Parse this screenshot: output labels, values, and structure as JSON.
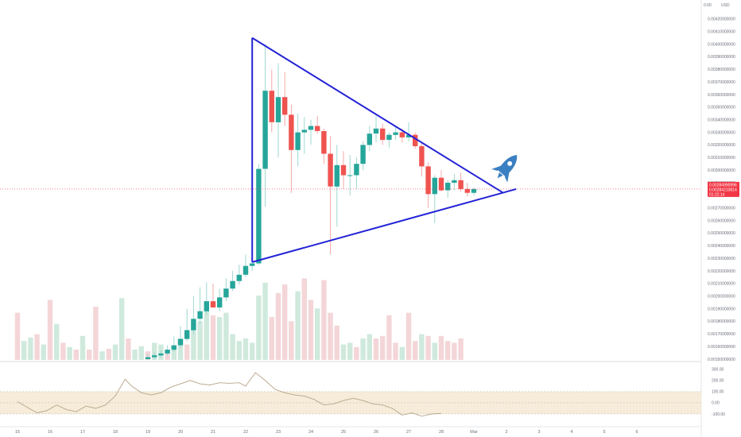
{
  "chart_data": {
    "type": "candlestick",
    "price_axis": {
      "currency": "USD",
      "top_label": "0.00",
      "ticks": [
        "0.00420000000",
        "0.00410000000",
        "0.00400000000",
        "0.00390000000",
        "0.00380000000",
        "0.00370000000",
        "0.00360000000",
        "0.00350000000",
        "0.00340000000",
        "0.00330000000",
        "0.00320000000",
        "0.00310000000",
        "0.00300000000",
        "0.00290000000",
        "0.00280000000",
        "0.00270000000",
        "0.00260000000",
        "0.00250000000",
        "0.00240000000",
        "0.00230000000",
        "0.00220000000",
        "0.00210000000",
        "0.00200000000",
        "0.00190000000",
        "0.00180000000",
        "0.00170000000",
        "0.00160000000",
        "0.00150000000"
      ],
      "ylim": [
        0.0015,
        0.0043
      ]
    },
    "last_price": {
      "value": "0.00284990996",
      "sub_value": "0.00284210814",
      "countdown": "01:22:14",
      "price": 0.00285,
      "color": "#f23645"
    },
    "date_labels": [
      {
        "label": "15",
        "day": 15
      },
      {
        "label": "16",
        "day": 16
      },
      {
        "label": "17",
        "day": 17
      },
      {
        "label": "18",
        "day": 18
      },
      {
        "label": "19",
        "day": 19
      },
      {
        "label": "20",
        "day": 20
      },
      {
        "label": "21",
        "day": 21
      },
      {
        "label": "22",
        "day": 22
      },
      {
        "label": "23",
        "day": 23
      },
      {
        "label": "24",
        "day": 24
      },
      {
        "label": "25",
        "day": 25
      },
      {
        "label": "26",
        "day": 26
      },
      {
        "label": "27",
        "day": 27
      },
      {
        "label": "28",
        "day": 28
      },
      {
        "label": "Mar",
        "day": 29
      },
      {
        "label": "2",
        "day": 30
      },
      {
        "label": "3",
        "day": 31
      },
      {
        "label": "4",
        "day": 32
      },
      {
        "label": "5",
        "day": 33
      },
      {
        "label": "6",
        "day": 34
      }
    ],
    "candles": [
      {
        "day": 19.0,
        "o": 0.0015,
        "h": 0.001545,
        "l": 0.001495,
        "c": 0.001515
      },
      {
        "day": 19.2,
        "o": 0.001515,
        "h": 0.001555,
        "l": 0.001505,
        "c": 0.00153
      },
      {
        "day": 19.4,
        "o": 0.00153,
        "h": 0.00157,
        "l": 0.001515,
        "c": 0.001545
      },
      {
        "day": 19.6,
        "o": 0.001545,
        "h": 0.00161,
        "l": 0.00153,
        "c": 0.001575
      },
      {
        "day": 19.8,
        "o": 0.001575,
        "h": 0.00168,
        "l": 0.00156,
        "c": 0.00161
      },
      {
        "day": 20.0,
        "o": 0.00161,
        "h": 0.00176,
        "l": 0.00159,
        "c": 0.00166
      },
      {
        "day": 20.2,
        "o": 0.00166,
        "h": 0.0019,
        "l": 0.00164,
        "c": 0.00173
      },
      {
        "day": 20.4,
        "o": 0.00173,
        "h": 0.002,
        "l": 0.0017,
        "c": 0.00182
      },
      {
        "day": 20.6,
        "o": 0.00182,
        "h": 0.00207,
        "l": 0.00178,
        "c": 0.00188
      },
      {
        "day": 20.8,
        "o": 0.00188,
        "h": 0.00211,
        "l": 0.00185,
        "c": 0.00196
      },
      {
        "day": 21.0,
        "o": 0.00196,
        "h": 0.0021,
        "l": 0.00191,
        "c": 0.00191
      },
      {
        "day": 21.2,
        "o": 0.00191,
        "h": 0.00206,
        "l": 0.00188,
        "c": 0.00199
      },
      {
        "day": 21.4,
        "o": 0.00199,
        "h": 0.00214,
        "l": 0.00196,
        "c": 0.00206
      },
      {
        "day": 21.6,
        "o": 0.00206,
        "h": 0.0022,
        "l": 0.00204,
        "c": 0.00212
      },
      {
        "day": 21.8,
        "o": 0.00212,
        "h": 0.00225,
        "l": 0.00209,
        "c": 0.00217
      },
      {
        "day": 22.0,
        "o": 0.00217,
        "h": 0.00233,
        "l": 0.00215,
        "c": 0.00224
      },
      {
        "day": 22.2,
        "o": 0.00224,
        "h": 0.00228,
        "l": 0.0022,
        "c": 0.00226
      },
      {
        "day": 22.4,
        "o": 0.00226,
        "h": 0.00305,
        "l": 0.00225,
        "c": 0.00301
      },
      {
        "day": 22.6,
        "o": 0.00301,
        "h": 0.004,
        "l": 0.00271,
        "c": 0.00363
      },
      {
        "day": 22.8,
        "o": 0.00363,
        "h": 0.0038,
        "l": 0.0033,
        "c": 0.00338
      },
      {
        "day": 23.0,
        "o": 0.00338,
        "h": 0.00385,
        "l": 0.0031,
        "c": 0.00358
      },
      {
        "day": 23.2,
        "o": 0.00358,
        "h": 0.00378,
        "l": 0.00335,
        "c": 0.00344
      },
      {
        "day": 23.4,
        "o": 0.00344,
        "h": 0.00352,
        "l": 0.00282,
        "c": 0.00316
      },
      {
        "day": 23.6,
        "o": 0.00316,
        "h": 0.00345,
        "l": 0.00303,
        "c": 0.0033
      },
      {
        "day": 23.8,
        "o": 0.0033,
        "h": 0.00342,
        "l": 0.00313,
        "c": 0.00332
      },
      {
        "day": 24.0,
        "o": 0.00332,
        "h": 0.0034,
        "l": 0.0032,
        "c": 0.00335
      },
      {
        "day": 24.2,
        "o": 0.00335,
        "h": 0.00343,
        "l": 0.00329,
        "c": 0.00331
      },
      {
        "day": 24.4,
        "o": 0.00331,
        "h": 0.00333,
        "l": 0.00305,
        "c": 0.00313
      },
      {
        "day": 24.6,
        "o": 0.00313,
        "h": 0.00327,
        "l": 0.00233,
        "c": 0.00287
      },
      {
        "day": 24.8,
        "o": 0.00287,
        "h": 0.0032,
        "l": 0.00255,
        "c": 0.00304
      },
      {
        "day": 25.0,
        "o": 0.00304,
        "h": 0.00315,
        "l": 0.00285,
        "c": 0.00296
      },
      {
        "day": 25.2,
        "o": 0.00296,
        "h": 0.00312,
        "l": 0.0028,
        "c": 0.00296
      },
      {
        "day": 25.4,
        "o": 0.00296,
        "h": 0.0031,
        "l": 0.00285,
        "c": 0.00305
      },
      {
        "day": 25.6,
        "o": 0.00305,
        "h": 0.00323,
        "l": 0.003,
        "c": 0.0032
      },
      {
        "day": 25.8,
        "o": 0.0032,
        "h": 0.00335,
        "l": 0.00315,
        "c": 0.00329
      },
      {
        "day": 26.0,
        "o": 0.00329,
        "h": 0.00343,
        "l": 0.00322,
        "c": 0.00333
      },
      {
        "day": 26.2,
        "o": 0.00333,
        "h": 0.00337,
        "l": 0.0032,
        "c": 0.00324
      },
      {
        "day": 26.4,
        "o": 0.00324,
        "h": 0.0033,
        "l": 0.00318,
        "c": 0.00328
      },
      {
        "day": 26.6,
        "o": 0.00328,
        "h": 0.00335,
        "l": 0.00324,
        "c": 0.0033
      },
      {
        "day": 26.8,
        "o": 0.0033,
        "h": 0.00333,
        "l": 0.00322,
        "c": 0.00326
      },
      {
        "day": 27.0,
        "o": 0.00326,
        "h": 0.00338,
        "l": 0.00323,
        "c": 0.00328
      },
      {
        "day": 27.2,
        "o": 0.00328,
        "h": 0.0033,
        "l": 0.00317,
        "c": 0.00319
      },
      {
        "day": 27.4,
        "o": 0.00319,
        "h": 0.00322,
        "l": 0.00295,
        "c": 0.00303
      },
      {
        "day": 27.6,
        "o": 0.00303,
        "h": 0.00306,
        "l": 0.0027,
        "c": 0.00281
      },
      {
        "day": 27.8,
        "o": 0.00281,
        "h": 0.00296,
        "l": 0.00258,
        "c": 0.00294
      },
      {
        "day": 28.0,
        "o": 0.00294,
        "h": 0.003,
        "l": 0.00283,
        "c": 0.00284
      },
      {
        "day": 28.2,
        "o": 0.00284,
        "h": 0.00292,
        "l": 0.00278,
        "c": 0.0029
      },
      {
        "day": 28.4,
        "o": 0.0029,
        "h": 0.00297,
        "l": 0.00284,
        "c": 0.00292
      },
      {
        "day": 28.6,
        "o": 0.00292,
        "h": 0.00298,
        "l": 0.00283,
        "c": 0.00285
      },
      {
        "day": 28.8,
        "o": 0.00285,
        "h": 0.0029,
        "l": 0.00279,
        "c": 0.00282
      },
      {
        "day": 29.0,
        "o": 0.00282,
        "h": 0.00286,
        "l": 0.0028,
        "c": 0.00285
      }
    ],
    "volume_bars": [
      {
        "day": 15.0,
        "v": 0.55,
        "up": false
      },
      {
        "day": 15.2,
        "v": 0.22,
        "up": true
      },
      {
        "day": 15.4,
        "v": 0.26,
        "up": true
      },
      {
        "day": 15.6,
        "v": 0.3,
        "up": false
      },
      {
        "day": 15.8,
        "v": 0.18,
        "up": true
      },
      {
        "day": 16.0,
        "v": 0.7,
        "up": false
      },
      {
        "day": 16.2,
        "v": 0.42,
        "up": true
      },
      {
        "day": 16.4,
        "v": 0.2,
        "up": false
      },
      {
        "day": 16.6,
        "v": 0.15,
        "up": true
      },
      {
        "day": 16.8,
        "v": 0.12,
        "up": false
      },
      {
        "day": 17.0,
        "v": 0.28,
        "up": true
      },
      {
        "day": 17.2,
        "v": 0.12,
        "up": false
      },
      {
        "day": 17.4,
        "v": 0.62,
        "up": false
      },
      {
        "day": 17.6,
        "v": 0.1,
        "up": true
      },
      {
        "day": 17.8,
        "v": 0.13,
        "up": false
      },
      {
        "day": 18.0,
        "v": 0.18,
        "up": true
      },
      {
        "day": 18.2,
        "v": 0.72,
        "up": true
      },
      {
        "day": 18.4,
        "v": 0.25,
        "up": false
      },
      {
        "day": 18.6,
        "v": 0.12,
        "up": true
      },
      {
        "day": 18.8,
        "v": 0.16,
        "up": true
      },
      {
        "day": 19.0,
        "v": 0.1,
        "up": false
      },
      {
        "day": 19.2,
        "v": 0.2,
        "up": true
      },
      {
        "day": 19.4,
        "v": 0.18,
        "up": true
      },
      {
        "day": 19.6,
        "v": 0.12,
        "up": false
      },
      {
        "day": 19.8,
        "v": 0.15,
        "up": true
      },
      {
        "day": 20.0,
        "v": 0.25,
        "up": true
      },
      {
        "day": 20.2,
        "v": 0.18,
        "up": false
      },
      {
        "day": 20.4,
        "v": 0.35,
        "up": true
      },
      {
        "day": 20.6,
        "v": 0.45,
        "up": true
      },
      {
        "day": 20.8,
        "v": 0.58,
        "up": true
      },
      {
        "day": 21.0,
        "v": 0.52,
        "up": false
      },
      {
        "day": 21.2,
        "v": 0.5,
        "up": true
      },
      {
        "day": 21.4,
        "v": 0.55,
        "up": true
      },
      {
        "day": 21.6,
        "v": 0.3,
        "up": true
      },
      {
        "day": 21.8,
        "v": 0.22,
        "up": true
      },
      {
        "day": 22.0,
        "v": 0.25,
        "up": true
      },
      {
        "day": 22.2,
        "v": 0.2,
        "up": true
      },
      {
        "day": 22.4,
        "v": 0.75,
        "up": true
      },
      {
        "day": 22.6,
        "v": 0.9,
        "up": true
      },
      {
        "day": 22.8,
        "v": 0.5,
        "up": false
      },
      {
        "day": 23.0,
        "v": 0.78,
        "up": false
      },
      {
        "day": 23.2,
        "v": 0.88,
        "up": false
      },
      {
        "day": 23.4,
        "v": 0.45,
        "up": false
      },
      {
        "day": 23.6,
        "v": 0.8,
        "up": true
      },
      {
        "day": 23.8,
        "v": 0.95,
        "up": false
      },
      {
        "day": 24.0,
        "v": 0.7,
        "up": false
      },
      {
        "day": 24.2,
        "v": 0.6,
        "up": true
      },
      {
        "day": 24.4,
        "v": 0.93,
        "up": false
      },
      {
        "day": 24.6,
        "v": 0.55,
        "up": false
      },
      {
        "day": 24.8,
        "v": 0.4,
        "up": false
      },
      {
        "day": 25.0,
        "v": 0.18,
        "up": true
      },
      {
        "day": 25.2,
        "v": 0.2,
        "up": true
      },
      {
        "day": 25.4,
        "v": 0.15,
        "up": false
      },
      {
        "day": 25.6,
        "v": 0.25,
        "up": true
      },
      {
        "day": 25.8,
        "v": 0.3,
        "up": true
      },
      {
        "day": 26.0,
        "v": 0.25,
        "up": false
      },
      {
        "day": 26.2,
        "v": 0.28,
        "up": false
      },
      {
        "day": 26.4,
        "v": 0.52,
        "up": false
      },
      {
        "day": 26.6,
        "v": 0.2,
        "up": false
      },
      {
        "day": 26.8,
        "v": 0.15,
        "up": true
      },
      {
        "day": 27.0,
        "v": 0.55,
        "up": false
      },
      {
        "day": 27.2,
        "v": 0.22,
        "up": false
      },
      {
        "day": 27.4,
        "v": 0.3,
        "up": true
      },
      {
        "day": 27.6,
        "v": 0.28,
        "up": false
      },
      {
        "day": 27.8,
        "v": 0.2,
        "up": true
      },
      {
        "day": 28.0,
        "v": 0.28,
        "up": false
      },
      {
        "day": 28.2,
        "v": 0.22,
        "up": false
      },
      {
        "day": 28.4,
        "v": 0.2,
        "up": false
      },
      {
        "day": 28.6,
        "v": 0.25,
        "up": false
      }
    ],
    "drawings": {
      "color": "#2323d6",
      "triangle": [
        {
          "day": 22.2,
          "price": 0.00405
        },
        {
          "day": 29.9,
          "price": 0.00282
        },
        {
          "day": 22.2,
          "price": 0.00227
        }
      ],
      "extended_lower_end": {
        "day": 30.3,
        "price": 0.00285
      }
    },
    "oscillator": {
      "ticks": [
        "300.00",
        "200.00",
        "100.00",
        "0.00",
        "-100.00"
      ],
      "ylim": [
        -150,
        320
      ],
      "band": [
        -100,
        100
      ],
      "line_color": "#b8a58a",
      "band_color": "#f6ecd9",
      "values": [
        {
          "day": 15.0,
          "v": 10
        },
        {
          "day": 15.3,
          "v": -40
        },
        {
          "day": 15.6,
          "v": -90
        },
        {
          "day": 15.9,
          "v": -70
        },
        {
          "day": 16.2,
          "v": -20
        },
        {
          "day": 16.5,
          "v": -60
        },
        {
          "day": 16.8,
          "v": -80
        },
        {
          "day": 17.1,
          "v": -30
        },
        {
          "day": 17.4,
          "v": -50
        },
        {
          "day": 17.7,
          "v": -20
        },
        {
          "day": 18.0,
          "v": 60
        },
        {
          "day": 18.3,
          "v": 210
        },
        {
          "day": 18.5,
          "v": 150
        },
        {
          "day": 18.8,
          "v": 90
        },
        {
          "day": 19.1,
          "v": 70
        },
        {
          "day": 19.4,
          "v": 90
        },
        {
          "day": 19.7,
          "v": 140
        },
        {
          "day": 20.0,
          "v": 170
        },
        {
          "day": 20.3,
          "v": 200
        },
        {
          "day": 20.6,
          "v": 170
        },
        {
          "day": 20.9,
          "v": 160
        },
        {
          "day": 21.2,
          "v": 180
        },
        {
          "day": 21.5,
          "v": 175
        },
        {
          "day": 21.8,
          "v": 180
        },
        {
          "day": 22.0,
          "v": 150
        },
        {
          "day": 22.3,
          "v": 270
        },
        {
          "day": 22.6,
          "v": 200
        },
        {
          "day": 22.9,
          "v": 120
        },
        {
          "day": 23.2,
          "v": 90
        },
        {
          "day": 23.5,
          "v": 70
        },
        {
          "day": 23.8,
          "v": 60
        },
        {
          "day": 24.1,
          "v": 30
        },
        {
          "day": 24.4,
          "v": -20
        },
        {
          "day": 24.7,
          "v": -10
        },
        {
          "day": 25.0,
          "v": 20
        },
        {
          "day": 25.3,
          "v": 40
        },
        {
          "day": 25.6,
          "v": 20
        },
        {
          "day": 25.9,
          "v": -10
        },
        {
          "day": 26.2,
          "v": -20
        },
        {
          "day": 26.5,
          "v": -50
        },
        {
          "day": 26.8,
          "v": -110
        },
        {
          "day": 27.1,
          "v": -90
        },
        {
          "day": 27.4,
          "v": -120
        },
        {
          "day": 27.7,
          "v": -100
        },
        {
          "day": 28.0,
          "v": -95
        }
      ]
    },
    "colors": {
      "up": "#26a69a",
      "down": "#ef5350",
      "up_volume": "#cfe9dd",
      "down_volume": "#f4d6d8"
    }
  },
  "rocket": {
    "icon": "rocket-icon",
    "color": "#3a7fc1"
  }
}
